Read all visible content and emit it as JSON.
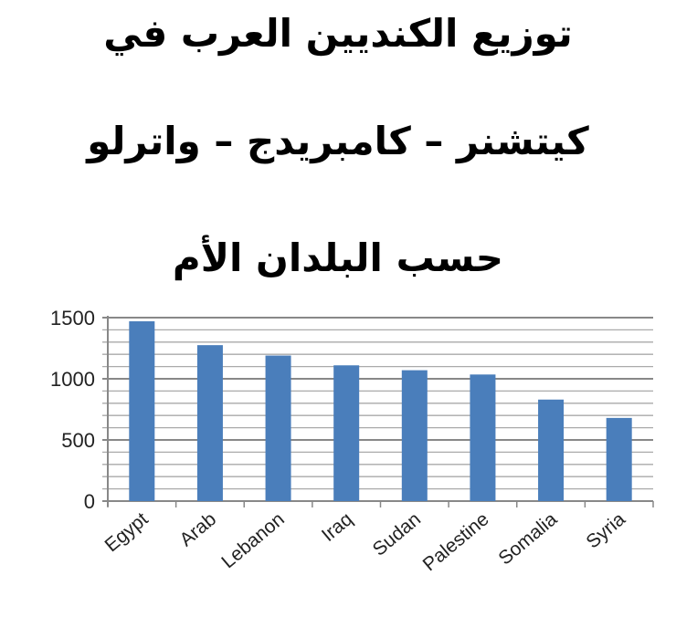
{
  "chart_data": {
    "type": "bar",
    "title_lines": [
      "توزيع الكنديين العرب في",
      "كيتشنر – كامبريدج – واترلو",
      "حسب البلدان الأم"
    ],
    "categories": [
      "Egypt",
      "Arab",
      "Lebanon",
      "Iraq",
      "Sudan",
      "Palestine",
      "Somalia",
      "Syria"
    ],
    "values": [
      1470,
      1275,
      1190,
      1110,
      1070,
      1035,
      830,
      680
    ],
    "ylim": [
      0,
      1500
    ],
    "yticks": [
      0,
      500,
      1000,
      1500
    ],
    "minor_grid_step": 100,
    "grid": true,
    "bar_color": "#4a7ebb",
    "xlabel": "",
    "ylabel": ""
  }
}
